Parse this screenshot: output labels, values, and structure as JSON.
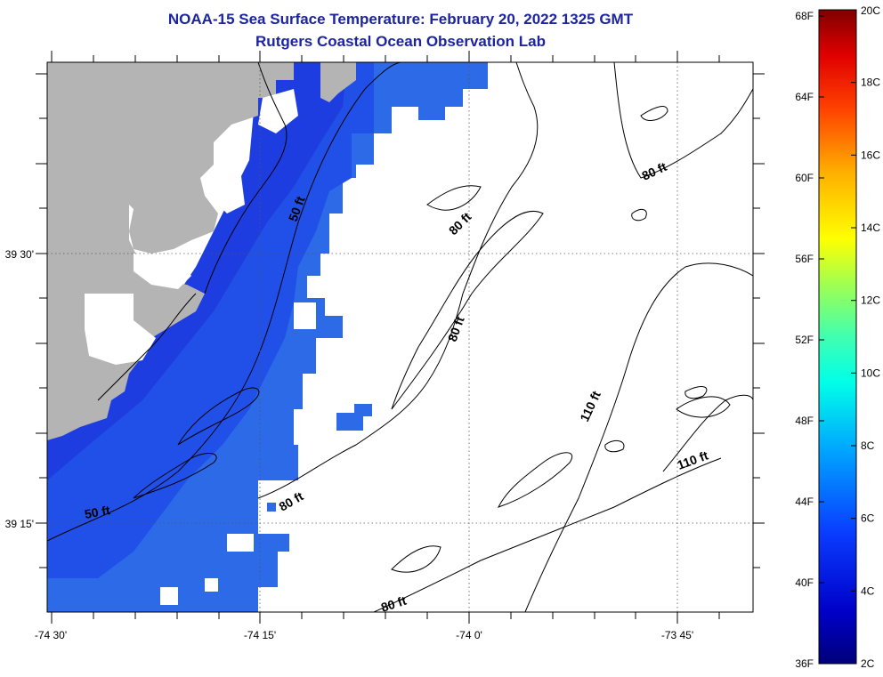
{
  "header": {
    "title": "NOAA-15 Sea Surface Temperature:  February 20, 2022 1325 GMT",
    "subtitle": "Rutgers Coastal Ocean Observation Lab"
  },
  "map": {
    "longitude_ticks": [
      "-74 30'",
      "-74 15'",
      "-74 0'",
      "-73 45'"
    ],
    "latitude_ticks": [
      "39 30'",
      "39 15'"
    ],
    "land_color": "#b4b4b4",
    "sst_color_near_shore": "#1e3de0",
    "sst_color_mid": "#2150e8",
    "sst_color_far": "#2c6ae8",
    "no_data_color": "#ffffff"
  },
  "contours": {
    "labels": [
      {
        "text": "50 ft",
        "depth_ft": 50
      },
      {
        "text": "50 ft",
        "depth_ft": 50
      },
      {
        "text": "80 ft",
        "depth_ft": 80
      },
      {
        "text": "80 ft",
        "depth_ft": 80
      },
      {
        "text": "80 ft",
        "depth_ft": 80
      },
      {
        "text": "80 ft",
        "depth_ft": 80
      },
      {
        "text": "80 ft",
        "depth_ft": 80
      },
      {
        "text": "110 ft",
        "depth_ft": 110
      },
      {
        "text": "110 ft",
        "depth_ft": 110
      }
    ]
  },
  "colorbar": {
    "fahrenheit_labels": [
      "68F",
      "64F",
      "60F",
      "56F",
      "52F",
      "48F",
      "44F",
      "40F",
      "36F"
    ],
    "celsius_labels": [
      "20C",
      "18C",
      "16C",
      "14C",
      "12C",
      "10C",
      "8C",
      "6C",
      "4C",
      "2C"
    ]
  }
}
